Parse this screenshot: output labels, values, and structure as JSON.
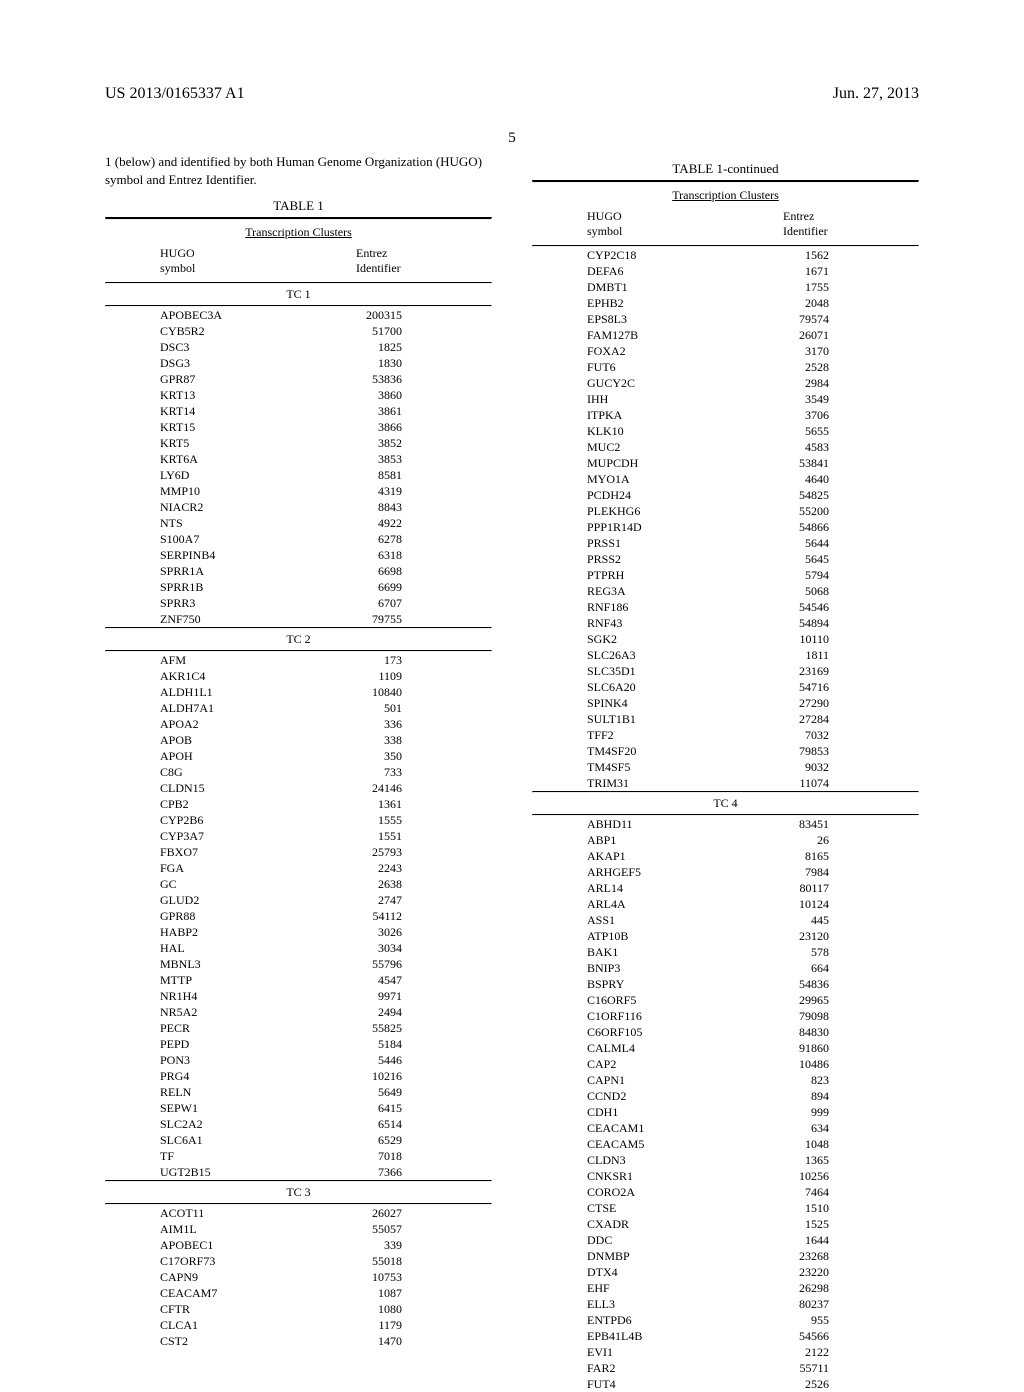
{
  "header": {
    "pub": "US 2013/0165337 A1",
    "date": "Jun. 27, 2013",
    "pagenum": "5"
  },
  "intro": "1 (below) and identified by both Human Genome Organization (HUGO) symbol and Entrez Identifier.",
  "table": {
    "title_left": "TABLE 1",
    "title_right": "TABLE 1-continued",
    "subhead": "Transcription Clusters",
    "col1": "HUGO\nsymbol",
    "col2": "Entrez\nIdentifier"
  },
  "left_sections": [
    {
      "label": "TC 1",
      "rows": [
        [
          "APOBEC3A",
          "200315"
        ],
        [
          "CYB5R2",
          "51700"
        ],
        [
          "DSC3",
          "1825"
        ],
        [
          "DSG3",
          "1830"
        ],
        [
          "GPR87",
          "53836"
        ],
        [
          "KRT13",
          "3860"
        ],
        [
          "KRT14",
          "3861"
        ],
        [
          "KRT15",
          "3866"
        ],
        [
          "KRT5",
          "3852"
        ],
        [
          "KRT6A",
          "3853"
        ],
        [
          "LY6D",
          "8581"
        ],
        [
          "MMP10",
          "4319"
        ],
        [
          "NIACR2",
          "8843"
        ],
        [
          "NTS",
          "4922"
        ],
        [
          "S100A7",
          "6278"
        ],
        [
          "SERPINB4",
          "6318"
        ],
        [
          "SPRR1A",
          "6698"
        ],
        [
          "SPRR1B",
          "6699"
        ],
        [
          "SPRR3",
          "6707"
        ],
        [
          "ZNF750",
          "79755"
        ]
      ]
    },
    {
      "label": "TC 2",
      "rows": [
        [
          "AFM",
          "173"
        ],
        [
          "AKR1C4",
          "1109"
        ],
        [
          "ALDH1L1",
          "10840"
        ],
        [
          "ALDH7A1",
          "501"
        ],
        [
          "APOA2",
          "336"
        ],
        [
          "APOB",
          "338"
        ],
        [
          "APOH",
          "350"
        ],
        [
          "C8G",
          "733"
        ],
        [
          "CLDN15",
          "24146"
        ],
        [
          "CPB2",
          "1361"
        ],
        [
          "CYP2B6",
          "1555"
        ],
        [
          "CYP3A7",
          "1551"
        ],
        [
          "FBXO7",
          "25793"
        ],
        [
          "FGA",
          "2243"
        ],
        [
          "GC",
          "2638"
        ],
        [
          "GLUD2",
          "2747"
        ],
        [
          "GPR88",
          "54112"
        ],
        [
          "HABP2",
          "3026"
        ],
        [
          "HAL",
          "3034"
        ],
        [
          "MBNL3",
          "55796"
        ],
        [
          "MTTP",
          "4547"
        ],
        [
          "NR1H4",
          "9971"
        ],
        [
          "NR5A2",
          "2494"
        ],
        [
          "PECR",
          "55825"
        ],
        [
          "PEPD",
          "5184"
        ],
        [
          "PON3",
          "5446"
        ],
        [
          "PRG4",
          "10216"
        ],
        [
          "RELN",
          "5649"
        ],
        [
          "SEPW1",
          "6415"
        ],
        [
          "SLC2A2",
          "6514"
        ],
        [
          "SLC6A1",
          "6529"
        ],
        [
          "TF",
          "7018"
        ],
        [
          "UGT2B15",
          "7366"
        ]
      ]
    },
    {
      "label": "TC 3",
      "rows": [
        [
          "ACOT11",
          "26027"
        ],
        [
          "AIM1L",
          "55057"
        ],
        [
          "APOBEC1",
          "339"
        ],
        [
          "C17ORF73",
          "55018"
        ],
        [
          "CAPN9",
          "10753"
        ],
        [
          "CEACAM7",
          "1087"
        ],
        [
          "CFTR",
          "1080"
        ],
        [
          "CLCA1",
          "1179"
        ],
        [
          "CST2",
          "1470"
        ]
      ]
    }
  ],
  "right_top_rows": [
    [
      "CYP2C18",
      "1562"
    ],
    [
      "DEFA6",
      "1671"
    ],
    [
      "DMBT1",
      "1755"
    ],
    [
      "EPHB2",
      "2048"
    ],
    [
      "EPS8L3",
      "79574"
    ],
    [
      "FAM127B",
      "26071"
    ],
    [
      "FOXA2",
      "3170"
    ],
    [
      "FUT6",
      "2528"
    ],
    [
      "GUCY2C",
      "2984"
    ],
    [
      "IHH",
      "3549"
    ],
    [
      "ITPKA",
      "3706"
    ],
    [
      "KLK10",
      "5655"
    ],
    [
      "MUC2",
      "4583"
    ],
    [
      "MUPCDH",
      "53841"
    ],
    [
      "MYO1A",
      "4640"
    ],
    [
      "PCDH24",
      "54825"
    ],
    [
      "PLEKHG6",
      "55200"
    ],
    [
      "PPP1R14D",
      "54866"
    ],
    [
      "PRSS1",
      "5644"
    ],
    [
      "PRSS2",
      "5645"
    ],
    [
      "PTPRH",
      "5794"
    ],
    [
      "REG3A",
      "5068"
    ],
    [
      "RNF186",
      "54546"
    ],
    [
      "RNF43",
      "54894"
    ],
    [
      "SGK2",
      "10110"
    ],
    [
      "SLC26A3",
      "1811"
    ],
    [
      "SLC35D1",
      "23169"
    ],
    [
      "SLC6A20",
      "54716"
    ],
    [
      "SPINK4",
      "27290"
    ],
    [
      "SULT1B1",
      "27284"
    ],
    [
      "TFF2",
      "7032"
    ],
    [
      "TM4SF20",
      "79853"
    ],
    [
      "TM4SF5",
      "9032"
    ],
    [
      "TRIM31",
      "11074"
    ]
  ],
  "right_sections": [
    {
      "label": "TC 4",
      "rows": [
        [
          "ABHD11",
          "83451"
        ],
        [
          "ABP1",
          "26"
        ],
        [
          "AKAP1",
          "8165"
        ],
        [
          "ARHGEF5",
          "7984"
        ],
        [
          "ARL14",
          "80117"
        ],
        [
          "ARL4A",
          "10124"
        ],
        [
          "ASS1",
          "445"
        ],
        [
          "ATP10B",
          "23120"
        ],
        [
          "BAK1",
          "578"
        ],
        [
          "BNIP3",
          "664"
        ],
        [
          "BSPRY",
          "54836"
        ],
        [
          "C16ORF5",
          "29965"
        ],
        [
          "C1ORF116",
          "79098"
        ],
        [
          "C6ORF105",
          "84830"
        ],
        [
          "CALML4",
          "91860"
        ],
        [
          "CAP2",
          "10486"
        ],
        [
          "CAPN1",
          "823"
        ],
        [
          "CCND2",
          "894"
        ],
        [
          "CDH1",
          "999"
        ],
        [
          "CEACAM1",
          "634"
        ],
        [
          "CEACAM5",
          "1048"
        ],
        [
          "CLDN3",
          "1365"
        ],
        [
          "CNKSR1",
          "10256"
        ],
        [
          "CORO2A",
          "7464"
        ],
        [
          "CTSE",
          "1510"
        ],
        [
          "CXADR",
          "1525"
        ],
        [
          "DDC",
          "1644"
        ],
        [
          "DNMBP",
          "23268"
        ],
        [
          "DTX4",
          "23220"
        ],
        [
          "EHF",
          "26298"
        ],
        [
          "ELL3",
          "80237"
        ],
        [
          "ENTPD6",
          "955"
        ],
        [
          "EPB41L4B",
          "54566"
        ],
        [
          "EVI1",
          "2122"
        ],
        [
          "FAR2",
          "55711"
        ],
        [
          "FUT4",
          "2526"
        ]
      ]
    }
  ],
  "style": {
    "font_family": "Times New Roman",
    "bg": "#ffffff",
    "text": "#000000",
    "body_fontsize": 12,
    "header_fontsize": 16
  }
}
